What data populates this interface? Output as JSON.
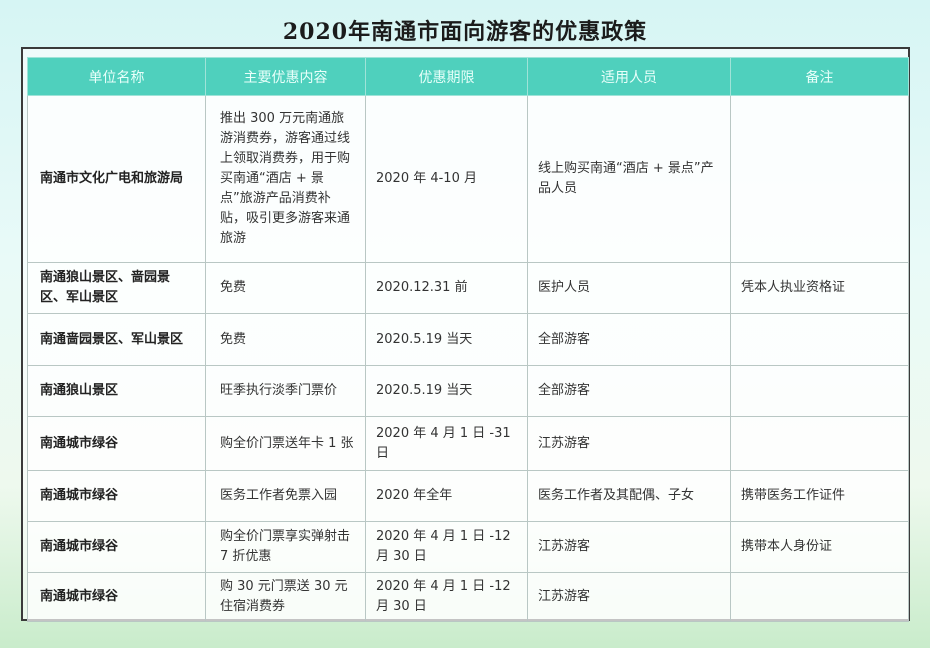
{
  "title": "2020年南通市面向游客的优惠政策",
  "table": {
    "headers": [
      "单位名称",
      "主要优惠内容",
      "优惠期限",
      "适用人员",
      "备注"
    ],
    "rows": [
      [
        "南通市文化广电和旅游局",
        "推出 300 万元南通旅游消费券，游客通过线上领取消费券，用于购买南通“酒店 + 景点”旅游产品消费补贴，吸引更多游客来通旅游",
        "2020 年 4-10 月",
        "线上购买南通“酒店 + 景点”产品人员",
        ""
      ],
      [
        "南通狼山景区、啬园景区、军山景区",
        "免费",
        "2020.12.31 前",
        "医护人员",
        "凭本人执业资格证"
      ],
      [
        "南通啬园景区、军山景区",
        "免费",
        "2020.5.19 当天",
        "全部游客",
        ""
      ],
      [
        "南通狼山景区",
        "旺季执行淡季门票价",
        "2020.5.19 当天",
        "全部游客",
        ""
      ],
      [
        "南通城市绿谷",
        "购全价门票送年卡 1 张",
        "2020 年 4 月 1 日 -31 日",
        "江苏游客",
        ""
      ],
      [
        "南通城市绿谷",
        "医务工作者免票入园",
        "2020 年全年",
        "医务工作者及其配偶、子女",
        "携带医务工作证件"
      ],
      [
        "南通城市绿谷",
        "购全价门票享实弹射击 7 折优惠",
        "2020 年 4 月 1 日 -12 月 30 日",
        "江苏游客",
        "携带本人身份证"
      ],
      [
        "南通城市绿谷",
        "购 30 元门票送 30 元住宿消费券",
        "2020 年 4 月 1 日 -12 月 30 日",
        "江苏游客",
        ""
      ]
    ]
  },
  "colors": {
    "header_bg": "#4fd0bd",
    "border": "#3a3a3a"
  }
}
